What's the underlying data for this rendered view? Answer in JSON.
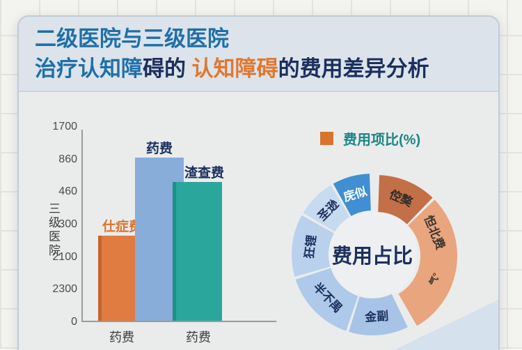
{
  "title": {
    "line1": "二级医院与三级医院",
    "line2_parts": [
      {
        "text": "治疗认知障",
        "color_class": "t-blue"
      },
      {
        "text": "碍的 ",
        "color_class": "t-navy"
      },
      {
        "text": "认知障碍",
        "color_class": "t-orange"
      },
      {
        "text": "的费用差异分析",
        "color_class": "t-navy"
      }
    ]
  },
  "legend": {
    "label": "费用项比(%)",
    "swatch_color": "#d9742e"
  },
  "colors": {
    "bar_orange": "#e07b42",
    "bar_orange_edge": "#c4652f",
    "bar_blue": "#88add9",
    "bar_teal": "#2ba69d",
    "bar_teal_edge": "#1a918a",
    "axis": "#9a9a9a",
    "donut_inner": "#edeff0"
  },
  "chart_data": [
    {
      "type": "bar",
      "title": "",
      "ylabel": "三级医院",
      "yticks": [
        "1700",
        "860",
        "460",
        "300",
        "2100",
        "2300",
        "0"
      ],
      "categories": [
        "药费",
        "药费"
      ],
      "bars": [
        {
          "label": "仕症费",
          "relative_value": 0.447,
          "color": "#e07b42",
          "edge_color": "#c4652f",
          "label_color": "#d9742e"
        },
        {
          "label": "药费",
          "relative_value": 0.853,
          "color": "#88add9",
          "edge_color": "#88add9",
          "label_color": "#1b2f5e"
        },
        {
          "label": "渣查费",
          "relative_value": 0.725,
          "color": "#2ba69d",
          "edge_color": "#1a918a",
          "label_color": "#1b2f5e"
        }
      ],
      "grid": false,
      "legend_position": "top-right"
    },
    {
      "type": "pie",
      "subtype": "donut",
      "center_label": "费用占比",
      "segments": [
        {
          "label": "庑似",
          "start_deg": 331,
          "end_deg": 358,
          "color": "#3f8fd2",
          "text_color": "#ffffff",
          "group": "blue",
          "label_deg": 344
        },
        {
          "label": "倥獒",
          "start_deg": 2,
          "end_deg": 44,
          "color": "#c36f47",
          "text_color": "#2e2a28",
          "group": "orange",
          "label_deg": 23
        },
        {
          "label": "怛北费",
          "start_deg": 46,
          "end_deg": 150,
          "color": "#e9a57d",
          "text_color": "#3c3531",
          "group": "orange",
          "label_deg": 68,
          "sublabel": "气°",
          "sublabel_deg": 112
        },
        {
          "label": "金副",
          "start_deg": 154,
          "end_deg": 197,
          "color": "#a7c4e6",
          "text_color": "#1b2f5e",
          "group": "blue",
          "label_deg": 176
        },
        {
          "label": "半不禺",
          "start_deg": 199,
          "end_deg": 252,
          "color": "#aec9e9",
          "text_color": "#1b2f5e",
          "group": "blue",
          "label_deg": 226
        },
        {
          "label": "狂锂",
          "start_deg": 254,
          "end_deg": 299,
          "color": "#b9d1ec",
          "text_color": "#1b2f5e",
          "group": "blue",
          "label_deg": 277
        },
        {
          "label": "圣逊",
          "start_deg": 301,
          "end_deg": 329,
          "color": "#c6daf0",
          "text_color": "#1b2f5e",
          "group": "blue",
          "label_deg": 315
        }
      ]
    }
  ]
}
